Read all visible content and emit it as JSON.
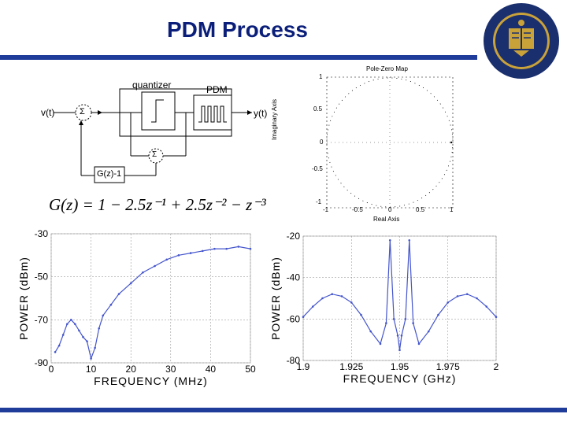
{
  "slide": {
    "title": "PDM Process",
    "colors": {
      "title": "#0b1f7a",
      "bar": "#1f3c9a",
      "trace": "#4455cc",
      "seal": "#1a2f6e",
      "seal_gold": "#c9a23a"
    }
  },
  "block_diagram": {
    "input_label": "v(t)",
    "output_label": "y(t)",
    "quantizer_label": "quantizer",
    "pdm_label": "PDM",
    "sum_symbol": "Σ",
    "feedback_block_label": "G(z)-1",
    "equation": "G(z) = 1 − 2.5z⁻¹ + 2.5z⁻² − z⁻³"
  },
  "pole_zero_map": {
    "title": "Pole-Zero Map",
    "xlabel": "Real Axis",
    "ylabel": "Imaginary Axis",
    "x_ticks": [
      "-1",
      "-0.5",
      "0",
      "0.5",
      "1"
    ],
    "y_ticks": [
      "1",
      "0.5",
      "0",
      "-0.5",
      "-1"
    ]
  },
  "chart_data": [
    {
      "type": "line",
      "xlabel": "FREQUENCY (MHz)",
      "ylabel": "POWER (dBm)",
      "xlim": [
        0,
        50
      ],
      "ylim": [
        -90,
        -30
      ],
      "x_ticks": [
        "0",
        "10",
        "20",
        "30",
        "40",
        "50"
      ],
      "y_ticks": [
        "-30",
        "-50",
        "-70",
        "-90"
      ],
      "grid": true,
      "series": [
        {
          "x": [
            1,
            2,
            3,
            4,
            5,
            6,
            7,
            8,
            9,
            10,
            11,
            12,
            13,
            15,
            17,
            20,
            23,
            26,
            29,
            32,
            35,
            38,
            41,
            44,
            47,
            50
          ],
          "y": [
            -85,
            -82,
            -77,
            -72,
            -70,
            -72,
            -75,
            -78,
            -80,
            -88,
            -83,
            -74,
            -68,
            -63,
            -58,
            -53,
            -48,
            -45,
            -42,
            -40,
            -39,
            -38,
            -37,
            -37,
            -36,
            -37
          ]
        }
      ]
    },
    {
      "type": "line",
      "xlabel": "FREQUENCY (GHz)",
      "ylabel": "POWER (dBm)",
      "xlim": [
        1.9,
        2.0
      ],
      "ylim": [
        -80,
        -20
      ],
      "x_ticks": [
        "1.9",
        "1.925",
        "1.95",
        "1.975",
        "2"
      ],
      "y_ticks": [
        "-20",
        "-40",
        "-60",
        "-80"
      ],
      "grid": true,
      "series": [
        {
          "x": [
            1.9,
            1.905,
            1.91,
            1.915,
            1.92,
            1.925,
            1.93,
            1.935,
            1.94,
            1.943,
            1.945,
            1.947,
            1.949,
            1.95,
            1.951,
            1.953,
            1.955,
            1.957,
            1.96,
            1.965,
            1.97,
            1.975,
            1.98,
            1.985,
            1.99,
            1.995,
            2.0
          ],
          "y": [
            -59,
            -54,
            -50,
            -48,
            -49,
            -52,
            -58,
            -66,
            -72,
            -62,
            -22,
            -60,
            -68,
            -75,
            -68,
            -60,
            -22,
            -62,
            -72,
            -66,
            -58,
            -52,
            -49,
            -48,
            -50,
            -54,
            -59
          ]
        }
      ]
    }
  ]
}
